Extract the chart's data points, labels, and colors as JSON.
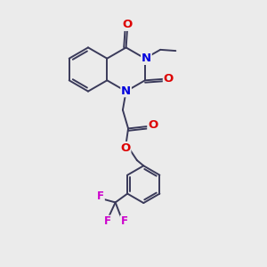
{
  "background_color": "#ebebeb",
  "bond_color": "#3a3a5a",
  "bond_width": 1.4,
  "atom_colors": {
    "N": "#0000dd",
    "O": "#dd0000",
    "F": "#cc00cc",
    "C": "#000000"
  },
  "font_size_atom": 8.5
}
